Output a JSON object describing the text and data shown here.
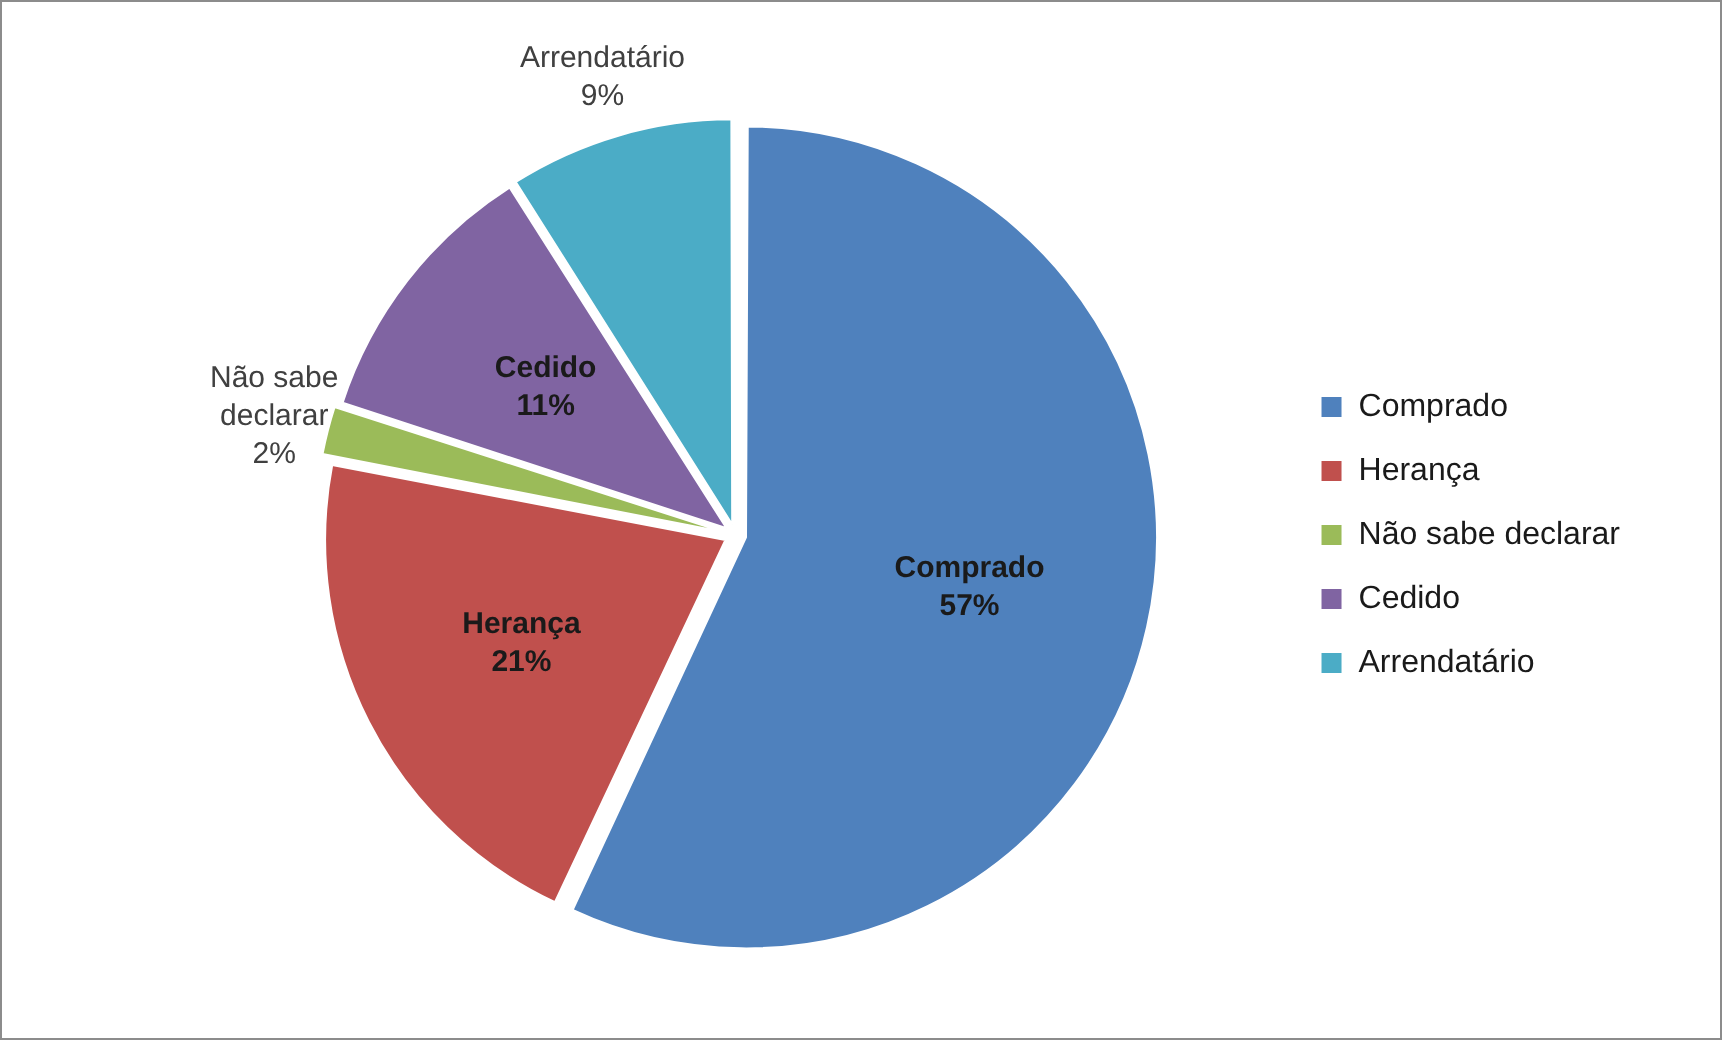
{
  "chart_data": {
    "type": "pie",
    "categories": [
      "Comprado",
      "Herança",
      "Não sabe declarar",
      "Cedido",
      "Arrendatário"
    ],
    "values": [
      57,
      21,
      2,
      11,
      9
    ],
    "colors": [
      "#4f81bd",
      "#c0504d",
      "#9bbb59",
      "#8064a2",
      "#4bacc6"
    ],
    "value_labels": [
      "57%",
      "21%",
      "2%",
      "11%",
      "9%"
    ],
    "legend": "right"
  }
}
